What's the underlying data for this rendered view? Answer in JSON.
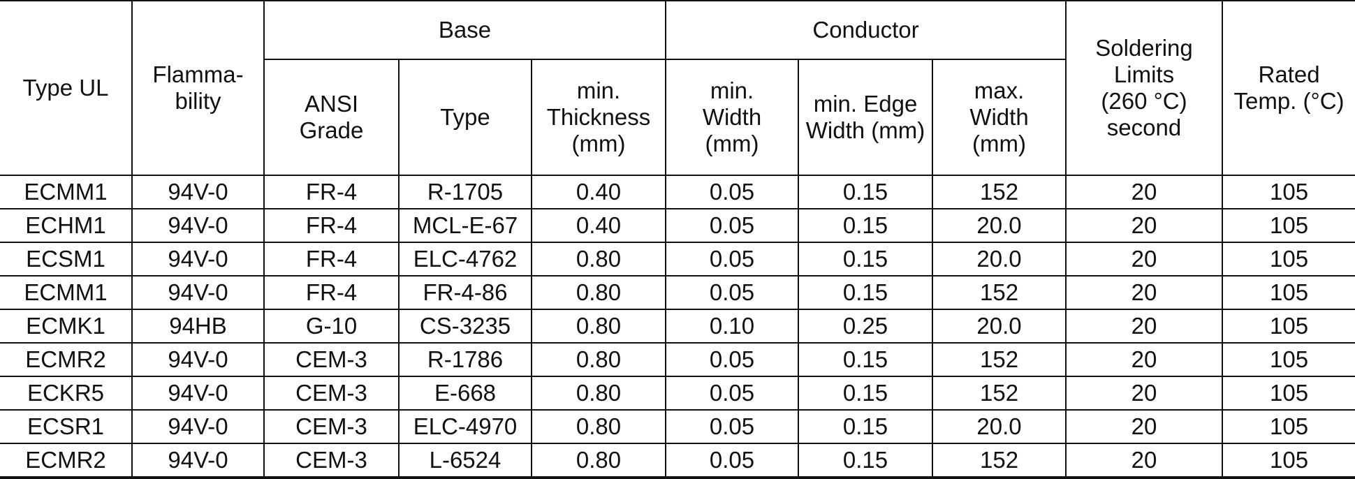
{
  "table": {
    "headers": {
      "type_ul": "Type UL",
      "flammability": "Flamma-\nbility",
      "base": "Base",
      "conductor": "Conductor",
      "soldering": "Soldering\nLimits\n(260 °C)\nsecond",
      "rated_temp": "Rated\nTemp. (°C)",
      "ansi_grade": "ANSI\nGrade",
      "base_type": "Type",
      "min_thickness": "min.\nThickness\n(mm)",
      "min_width": "min.\nWidth\n(mm)",
      "min_edge_width": "min. Edge\nWidth (mm)",
      "max_width": "max.\nWidth\n(mm)"
    },
    "rows": [
      [
        "ECMM1",
        "94V-0",
        "FR-4",
        "R-1705",
        "0.40",
        "0.05",
        "0.15",
        "152",
        "20",
        "105"
      ],
      [
        "ECHM1",
        "94V-0",
        "FR-4",
        "MCL-E-67",
        "0.40",
        "0.05",
        "0.15",
        "20.0",
        "20",
        "105"
      ],
      [
        "ECSM1",
        "94V-0",
        "FR-4",
        "ELC-4762",
        "0.80",
        "0.05",
        "0.15",
        "20.0",
        "20",
        "105"
      ],
      [
        "ECMM1",
        "94V-0",
        "FR-4",
        "FR-4-86",
        "0.80",
        "0.05",
        "0.15",
        "152",
        "20",
        "105"
      ],
      [
        "ECMK1",
        "94HB",
        "G-10",
        "CS-3235",
        "0.80",
        "0.10",
        "0.25",
        "20.0",
        "20",
        "105"
      ],
      [
        "ECMR2",
        "94V-0",
        "CEM-3",
        "R-1786",
        "0.80",
        "0.05",
        "0.15",
        "152",
        "20",
        "105"
      ],
      [
        "ECKR5",
        "94V-0",
        "CEM-3",
        "E-668",
        "0.80",
        "0.05",
        "0.15",
        "152",
        "20",
        "105"
      ],
      [
        "ECSR1",
        "94V-0",
        "CEM-3",
        "ELC-4970",
        "0.80",
        "0.05",
        "0.15",
        "20.0",
        "20",
        "105"
      ],
      [
        "ECMR2",
        "94V-0",
        "CEM-3",
        "L-6524",
        "0.80",
        "0.05",
        "0.15",
        "152",
        "20",
        "105"
      ]
    ]
  }
}
